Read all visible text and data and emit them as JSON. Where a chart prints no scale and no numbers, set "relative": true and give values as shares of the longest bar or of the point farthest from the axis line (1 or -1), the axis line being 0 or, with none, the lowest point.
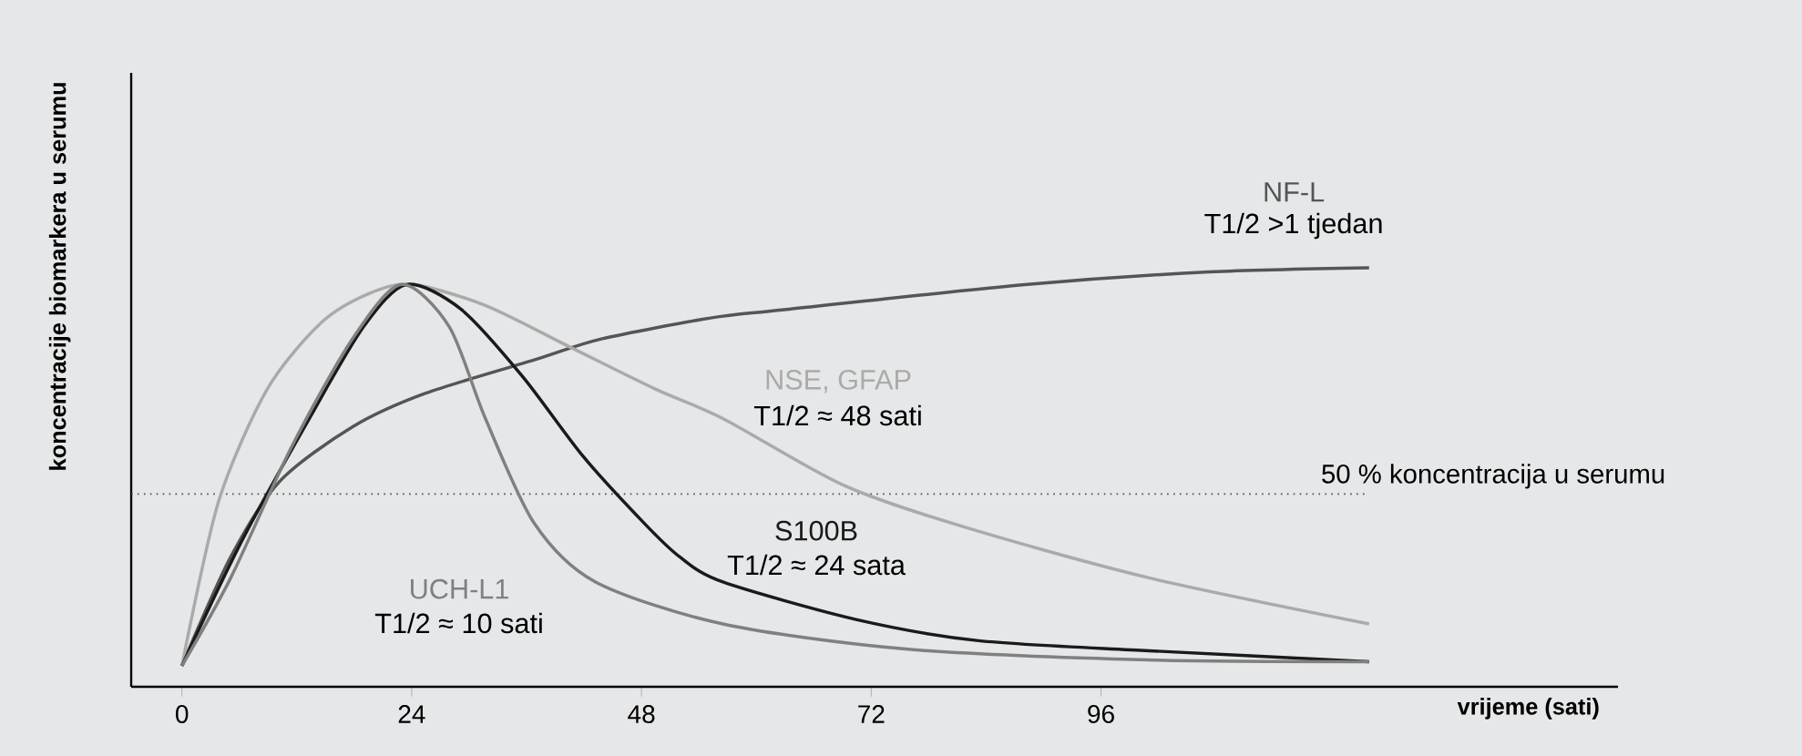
{
  "chart_data": {
    "type": "line",
    "relative": true,
    "xlabel": "vrijeme (sati)",
    "ylabel": "koncentracije biomarkera u serumu",
    "xlim": [
      -5.3,
      150
    ],
    "xticks": [
      0,
      24,
      48,
      72,
      96
    ],
    "series": [
      {
        "name": "NF-L",
        "color": "#555555",
        "x": [
          0,
          5.1,
          10.2,
          17.8,
          25.4,
          36.8,
          43.8,
          55.2,
          62.9,
          88.3,
          107.3,
          124
        ],
        "values": [
          0.05,
          0.31,
          0.49,
          0.62,
          0.7,
          0.78,
          0.83,
          0.88,
          0.9,
          0.96,
          0.99,
          1.0
        ]
      },
      {
        "name": "NSE, GFAP",
        "color": "#aaaaaa",
        "x": [
          0,
          3.8,
          8.9,
          14.6,
          19.7,
          24.1,
          31.7,
          40.6,
          49.5,
          56.5,
          69.2,
          81.9,
          101,
          124
        ],
        "values": [
          0.05,
          0.44,
          0.71,
          0.87,
          0.94,
          0.96,
          0.91,
          0.81,
          0.71,
          0.64,
          0.48,
          0.38,
          0.26,
          0.15
        ]
      },
      {
        "name": "S100B",
        "color": "#1a1a1a",
        "x": [
          0,
          6.3,
          13.3,
          19,
          23.5,
          29.2,
          35.6,
          41.9,
          48.3,
          52,
          56.5,
          70.5,
          83.2,
          101,
          124
        ],
        "values": [
          0.05,
          0.35,
          0.64,
          0.86,
          0.96,
          0.9,
          0.74,
          0.55,
          0.39,
          0.31,
          0.25,
          0.16,
          0.11,
          0.086,
          0.06
        ]
      },
      {
        "name": "UCH-L1",
        "color": "#808080",
        "x": [
          0,
          5.1,
          11.4,
          17.8,
          22.9,
          27.9,
          31.7,
          36.8,
          43.2,
          56.5,
          75.6,
          101,
          124
        ],
        "values": [
          0.05,
          0.26,
          0.57,
          0.83,
          0.96,
          0.86,
          0.64,
          0.39,
          0.25,
          0.15,
          0.09,
          0.064,
          0.06
        ]
      }
    ],
    "annotations": [
      "T1/2 >1 tjedan",
      "T1/2 ≈ 48 sati",
      "T1/2 ≈ 24 sata",
      "T1/2 ≈ 10 sati"
    ],
    "ref_lines": [
      {
        "axis": "y",
        "value": 0.46,
        "label": "50 % koncentracija u serumu",
        "line_style": "dotted"
      }
    ]
  }
}
